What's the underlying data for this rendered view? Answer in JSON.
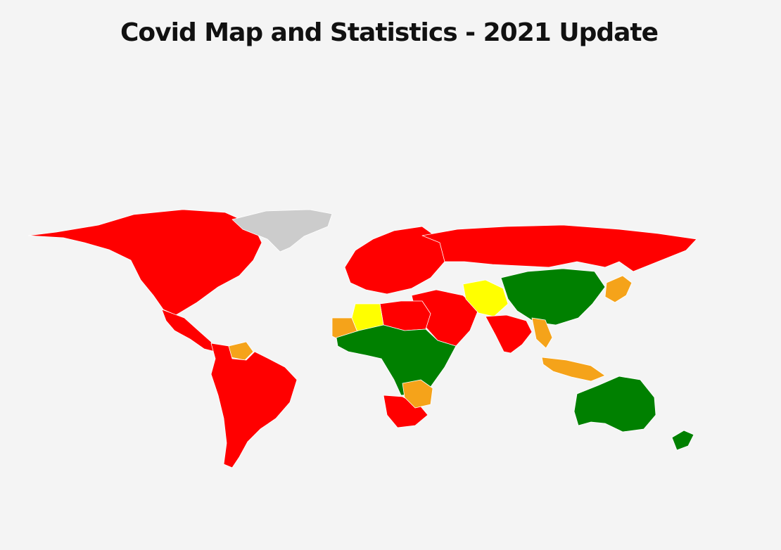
{
  "title": "Covid Map and Statistics - 2021 Update",
  "map": {
    "type": "choropleth world map",
    "status_colors": {
      "high": "#ff0000",
      "medium": "#f5a31a",
      "low": "#ffff00",
      "very_low": "#008000",
      "no_data": "#cccccc"
    },
    "background": "#f4f4f4",
    "border_color": "#ffffff",
    "regions": [
      {
        "name": "North America",
        "status": "high"
      },
      {
        "name": "Central America",
        "status": "high"
      },
      {
        "name": "Venezuela",
        "status": "medium"
      },
      {
        "name": "South America",
        "status": "high"
      },
      {
        "name": "Greenland",
        "status": "no_data"
      },
      {
        "name": "Europe",
        "status": "high"
      },
      {
        "name": "Russia",
        "status": "high"
      },
      {
        "name": "Middle East",
        "status": "high"
      },
      {
        "name": "North Africa",
        "status": "high"
      },
      {
        "name": "Algeria",
        "status": "low"
      },
      {
        "name": "Mauritania",
        "status": "medium"
      },
      {
        "name": "West and Central Africa",
        "status": "very_low"
      },
      {
        "name": "Southern Africa",
        "status": "high"
      },
      {
        "name": "Zambia region",
        "status": "medium"
      },
      {
        "name": "Central Asia",
        "status": "low"
      },
      {
        "name": "China",
        "status": "very_low"
      },
      {
        "name": "India",
        "status": "high"
      },
      {
        "name": "Myanmar",
        "status": "medium"
      },
      {
        "name": "Japan",
        "status": "medium"
      },
      {
        "name": "Indonesia",
        "status": "medium"
      },
      {
        "name": "Australia",
        "status": "very_low"
      },
      {
        "name": "New Zealand",
        "status": "very_low"
      }
    ]
  }
}
